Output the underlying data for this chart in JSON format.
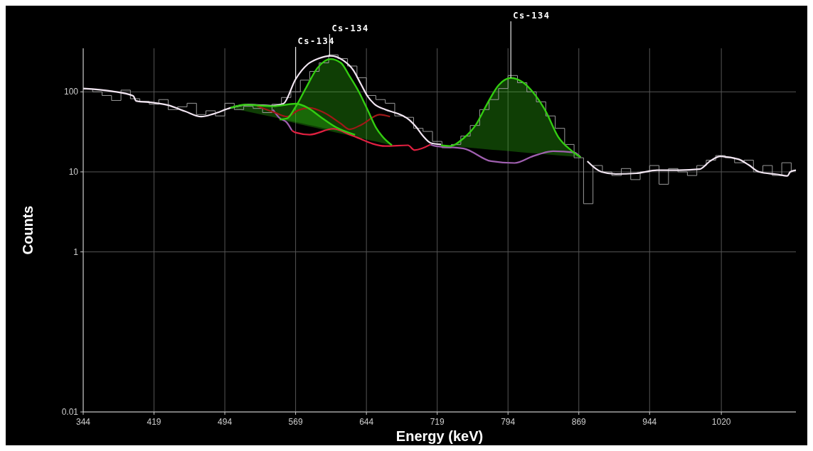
{
  "chart_data": {
    "type": "line",
    "xlabel": "Energy (keV)",
    "ylabel": "Counts",
    "log": "y",
    "grid": true,
    "xlim": [
      344,
      1099
    ],
    "xticks": [
      344,
      419,
      494,
      569,
      644,
      719,
      794,
      869,
      944,
      1020
    ],
    "ylim": [
      0.01,
      350
    ],
    "yticks": [
      0.01,
      1,
      10,
      100
    ],
    "ref_lines": [
      {
        "axis": "x",
        "value": 569,
        "label": "Cs-134",
        "color": "#ffffff"
      },
      {
        "axis": "x",
        "value": 605,
        "label": "Cs-134",
        "color": "#ffffff"
      },
      {
        "axis": "x",
        "value": 797,
        "label": "Cs-134",
        "color": "#ffffff"
      }
    ],
    "series": [
      {
        "type": "step",
        "color": "#9a9a9a",
        "x": [
          344,
          354,
          364,
          374,
          384,
          394,
          404,
          414,
          424,
          434,
          444,
          454,
          464,
          474,
          484,
          494,
          504,
          514,
          524,
          534,
          544,
          554,
          564,
          574,
          584,
          594,
          604,
          614,
          624,
          634,
          644,
          654,
          664,
          674,
          684,
          694,
          704,
          714,
          724,
          734,
          744,
          754,
          764,
          774,
          784,
          794,
          804,
          814,
          824,
          834,
          844,
          854,
          864,
          874,
          884,
          894,
          904,
          914,
          924,
          934,
          944,
          954,
          964,
          974,
          984,
          994,
          1004,
          1014,
          1024,
          1034,
          1044,
          1054,
          1064,
          1074,
          1084,
          1094
        ],
        "values": [
          108,
          100,
          90,
          78,
          105,
          82,
          76,
          70,
          80,
          60,
          65,
          72,
          52,
          58,
          50,
          72,
          60,
          66,
          62,
          55,
          70,
          85,
          100,
          140,
          180,
          230,
          290,
          260,
          210,
          150,
          90,
          80,
          72,
          50,
          48,
          35,
          32,
          24,
          20,
          22,
          28,
          38,
          60,
          80,
          110,
          160,
          130,
          100,
          75,
          50,
          35,
          22,
          15,
          4,
          12,
          10,
          9,
          11,
          8,
          10,
          12,
          7,
          11,
          10,
          9,
          12,
          14,
          16,
          15,
          13,
          14,
          10,
          12,
          9,
          13,
          10
        ]
      },
      {
        "color": "#f2e6f2",
        "x": [
          344,
          374,
          397,
          400,
          419,
          434,
          452,
          469,
          482,
          500,
          519,
          545,
          556,
          569,
          582,
          593,
          606,
          619,
          630,
          638,
          645,
          652,
          664,
          678,
          689,
          697,
          704,
          712,
          723,
          871,
          878,
          893,
          908,
          930,
          952,
          975,
          997,
          1008,
          1019,
          1038,
          1049,
          1060,
          1079,
          1090,
          1093,
          1099
        ],
        "values": [
          110,
          102,
          89,
          77,
          73,
          68,
          57,
          49,
          53,
          63,
          69,
          67,
          71,
          144,
          222,
          260,
          282,
          249,
          187,
          126,
          89,
          71,
          60,
          53,
          45,
          36,
          28,
          23,
          22,
          null,
          13.6,
          10,
          9.4,
          9.6,
          10.5,
          10.5,
          10.8,
          13.6,
          15.6,
          14.4,
          12.2,
          10,
          9.3,
          8.9,
          10,
          10.5
        ]
      },
      {
        "color": "#a060b0",
        "x": [
          545,
          552,
          560,
          565
        ],
        "values": [
          60,
          47,
          41,
          33
        ]
      },
      {
        "color": "#e02040",
        "x": [
          565,
          569,
          584,
          609,
          627,
          664,
          688,
          695,
          712
        ],
        "values": [
          33,
          31,
          29.2,
          34.6,
          29,
          21,
          21.5,
          18.7,
          22
        ]
      },
      {
        "color": "#a060b0",
        "x": [
          712,
          717,
          747,
          776,
          801,
          821,
          842,
          864,
          871
        ],
        "values": [
          22,
          21,
          19.6,
          13.6,
          12.9,
          15.8,
          18.1,
          17.5,
          15.2
        ]
      },
      {
        "color": "#a01818",
        "x": [
          528,
          547,
          560,
          572,
          584,
          599,
          617,
          626,
          639,
          658,
          669
        ],
        "values": [
          67,
          55,
          49,
          59,
          63,
          55,
          40,
          34,
          39,
          52,
          49
        ]
      },
      {
        "type": "area",
        "color": "#33cc11",
        "x": [
          500,
          515,
          545,
          569,
          582,
          595,
          612,
          632
        ],
        "values": [
          63,
          69,
          66,
          71,
          63,
          49,
          36,
          29
        ]
      },
      {
        "type": "area",
        "color": "#33cc11",
        "x": [
          552,
          560,
          569,
          580,
          592,
          606,
          617,
          626,
          636,
          646,
          654,
          661,
          671
        ],
        "values": [
          45,
          46.6,
          65,
          112,
          198,
          257,
          230,
          158,
          100,
          57,
          36,
          27.6,
          21.5
        ]
      },
      {
        "type": "area",
        "color": "#33cc11",
        "x": [
          723,
          732,
          747,
          760,
          772,
          784,
          797,
          809,
          821,
          834,
          847,
          861,
          871
        ],
        "values": [
          21.5,
          21,
          26.4,
          38.8,
          71,
          121,
          149,
          133,
          97,
          57,
          27.6,
          18.5,
          15.2
        ]
      }
    ]
  }
}
